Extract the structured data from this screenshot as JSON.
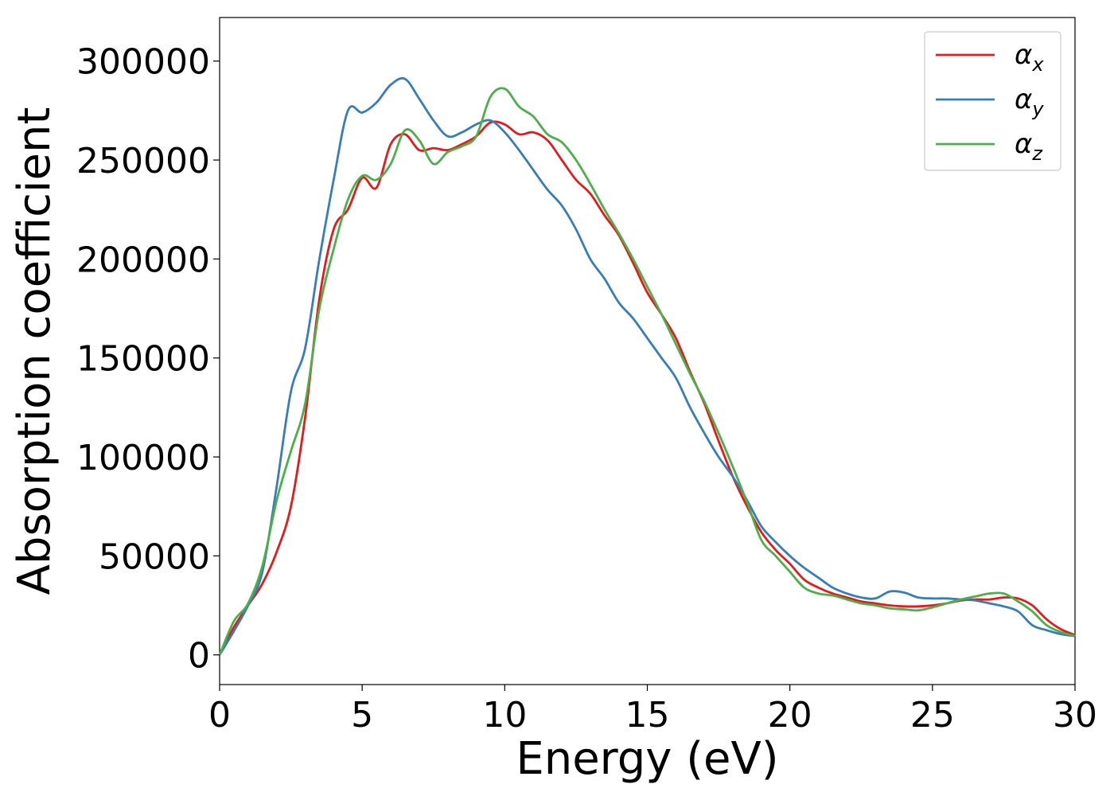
{
  "chart_data": {
    "type": "line",
    "xlabel": "Energy (eV)",
    "ylabel": "Absorption coefficient",
    "xlim": [
      0,
      30
    ],
    "ylim": [
      -15000,
      322000
    ],
    "xticks": [
      0,
      5,
      10,
      15,
      20,
      25,
      30
    ],
    "xtick_labels": [
      "0",
      "5",
      "10",
      "15",
      "20",
      "25",
      "30"
    ],
    "yticks": [
      0,
      50000,
      100000,
      150000,
      200000,
      250000,
      300000
    ],
    "ytick_labels": [
      "0",
      "50000",
      "100000",
      "150000",
      "200000",
      "250000",
      "300000"
    ],
    "grid": false,
    "legend_position": "top-right",
    "series": [
      {
        "name": "α_x",
        "base": "α",
        "sub": "x",
        "color": "#e41a1c",
        "x": [
          0,
          0.5,
          1,
          1.5,
          2,
          2.5,
          3,
          3.5,
          4,
          4.5,
          5,
          5.5,
          6,
          6.5,
          7,
          7.5,
          8,
          8.5,
          9,
          9.5,
          10,
          10.5,
          11,
          11.5,
          12,
          12.5,
          13,
          13.5,
          14,
          14.5,
          15,
          15.5,
          16,
          16.5,
          17,
          17.5,
          18,
          18.5,
          19,
          19.5,
          20,
          20.5,
          21,
          21.5,
          22,
          22.5,
          23,
          23.5,
          24,
          24.5,
          25,
          25.5,
          26,
          26.5,
          27,
          27.5,
          28,
          28.5,
          29,
          29.5,
          30
        ],
        "y": [
          0,
          14000,
          25000,
          36000,
          52000,
          75000,
          120000,
          180000,
          215000,
          225000,
          241000,
          236000,
          258000,
          263000,
          255000,
          256000,
          255000,
          258000,
          262000,
          269000,
          268000,
          263000,
          264000,
          260000,
          250000,
          240000,
          233000,
          222000,
          212000,
          198000,
          183000,
          172000,
          160000,
          143000,
          127000,
          108000,
          90000,
          75000,
          62000,
          53000,
          46000,
          38000,
          34000,
          31000,
          29000,
          27000,
          26000,
          25000,
          24500,
          24500,
          25000,
          26000,
          27500,
          28000,
          28000,
          29000,
          28500,
          25000,
          18000,
          13000,
          10000
        ]
      },
      {
        "name": "α_y",
        "base": "α",
        "sub": "y",
        "color": "#377eb8",
        "x": [
          0,
          0.5,
          1,
          1.5,
          2,
          2.5,
          3,
          3.5,
          4,
          4.5,
          5,
          5.5,
          6,
          6.5,
          7,
          7.5,
          8,
          8.5,
          9,
          9.5,
          10,
          10.5,
          11,
          11.5,
          12,
          12.5,
          13,
          13.5,
          14,
          14.5,
          15,
          15.5,
          16,
          16.5,
          17,
          17.5,
          18,
          18.5,
          19,
          19.5,
          20,
          20.5,
          21,
          21.5,
          22,
          22.5,
          23,
          23.5,
          24,
          24.5,
          25,
          25.5,
          26,
          26.5,
          27,
          27.5,
          28,
          28.5,
          29,
          29.5,
          30
        ],
        "y": [
          0,
          12000,
          25000,
          42000,
          85000,
          133000,
          155000,
          200000,
          240000,
          275000,
          274000,
          279000,
          288000,
          291000,
          281000,
          270000,
          262000,
          264000,
          268000,
          270000,
          264000,
          255000,
          245000,
          235000,
          227000,
          215000,
          200000,
          190000,
          178000,
          170000,
          160000,
          150000,
          140000,
          125000,
          112000,
          100000,
          90000,
          78000,
          65000,
          57000,
          50000,
          44000,
          39000,
          34000,
          31000,
          29000,
          28500,
          32000,
          31500,
          29000,
          28500,
          28500,
          28000,
          27500,
          26000,
          24500,
          22000,
          15000,
          12500,
          10500,
          9500
        ]
      },
      {
        "name": "α_z",
        "base": "α",
        "sub": "z",
        "color": "#4daf4a",
        "x": [
          0,
          0.5,
          1,
          1.5,
          2,
          2.5,
          3,
          3.5,
          4,
          4.5,
          5,
          5.5,
          6,
          6.5,
          7,
          7.5,
          8,
          8.5,
          9,
          9.5,
          10,
          10.5,
          11,
          11.5,
          12,
          12.5,
          13,
          13.5,
          14,
          14.5,
          15,
          15.5,
          16,
          16.5,
          17,
          17.5,
          18,
          18.5,
          19,
          19.5,
          20,
          20.5,
          21,
          21.5,
          22,
          22.5,
          23,
          23.5,
          24,
          24.5,
          25,
          25.5,
          26,
          26.5,
          27,
          27.5,
          28,
          28.5,
          29,
          29.5,
          30
        ],
        "y": [
          0,
          17000,
          26000,
          45000,
          78000,
          103000,
          127000,
          175000,
          205000,
          230000,
          242000,
          240000,
          248000,
          265000,
          260000,
          248000,
          254000,
          257000,
          262000,
          282000,
          286000,
          277000,
          272000,
          263000,
          259000,
          250000,
          238000,
          225000,
          213000,
          200000,
          186000,
          172000,
          157000,
          142000,
          128000,
          112000,
          95000,
          77000,
          58000,
          50000,
          42000,
          34000,
          31000,
          30000,
          28000,
          26000,
          25000,
          23500,
          23000,
          22500,
          24000,
          26000,
          28000,
          29500,
          31000,
          31000,
          27000,
          22000,
          15000,
          11500,
          9500
        ]
      }
    ]
  }
}
